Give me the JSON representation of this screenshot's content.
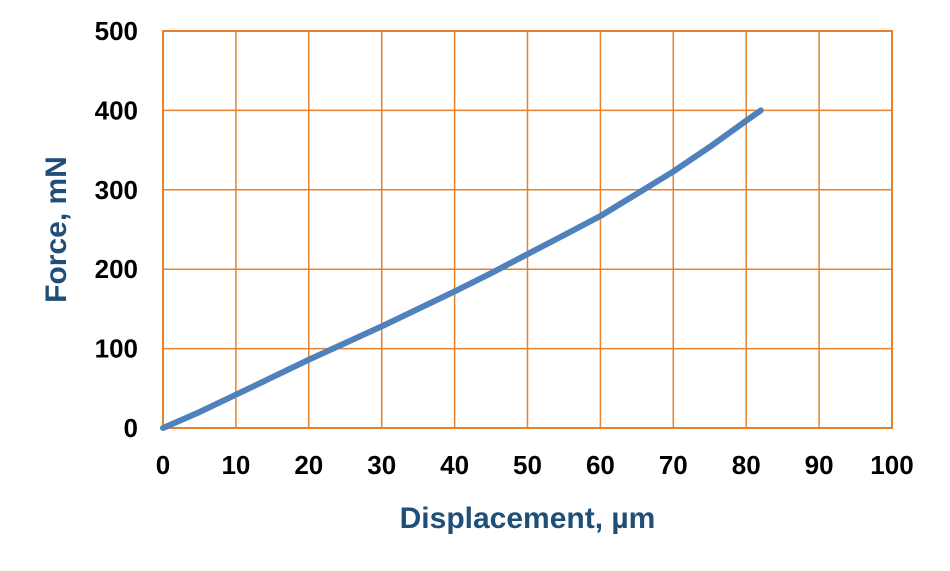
{
  "chart_data": {
    "type": "line",
    "title": "",
    "xlabel": "Displacement, µm",
    "ylabel": "Force, mN",
    "xlim": [
      0,
      100
    ],
    "ylim": [
      0,
      500
    ],
    "xticks": [
      0,
      10,
      20,
      30,
      40,
      50,
      60,
      70,
      80,
      90,
      100
    ],
    "yticks": [
      0,
      100,
      200,
      300,
      400,
      500
    ],
    "xtick_labels": [
      "0",
      "10",
      "20",
      "30",
      "40",
      "50",
      "60",
      "70",
      "80",
      "90",
      "100"
    ],
    "ytick_labels": [
      "0",
      "100",
      "200",
      "300",
      "400",
      "500"
    ],
    "grid": true,
    "legend": "none",
    "colors": {
      "grid": "#e8822a",
      "line": "#4f81bd",
      "axis_title": "#1f4e79"
    },
    "series": [
      {
        "x": [
          0,
          5,
          10,
          15,
          20,
          25,
          30,
          35,
          40,
          45,
          50,
          55,
          60,
          65,
          70,
          75,
          80,
          82
        ],
        "y": [
          0,
          20,
          42,
          64,
          86,
          107,
          128,
          150,
          172,
          195,
          219,
          243,
          267,
          295,
          323,
          354,
          387,
          400
        ]
      }
    ]
  }
}
